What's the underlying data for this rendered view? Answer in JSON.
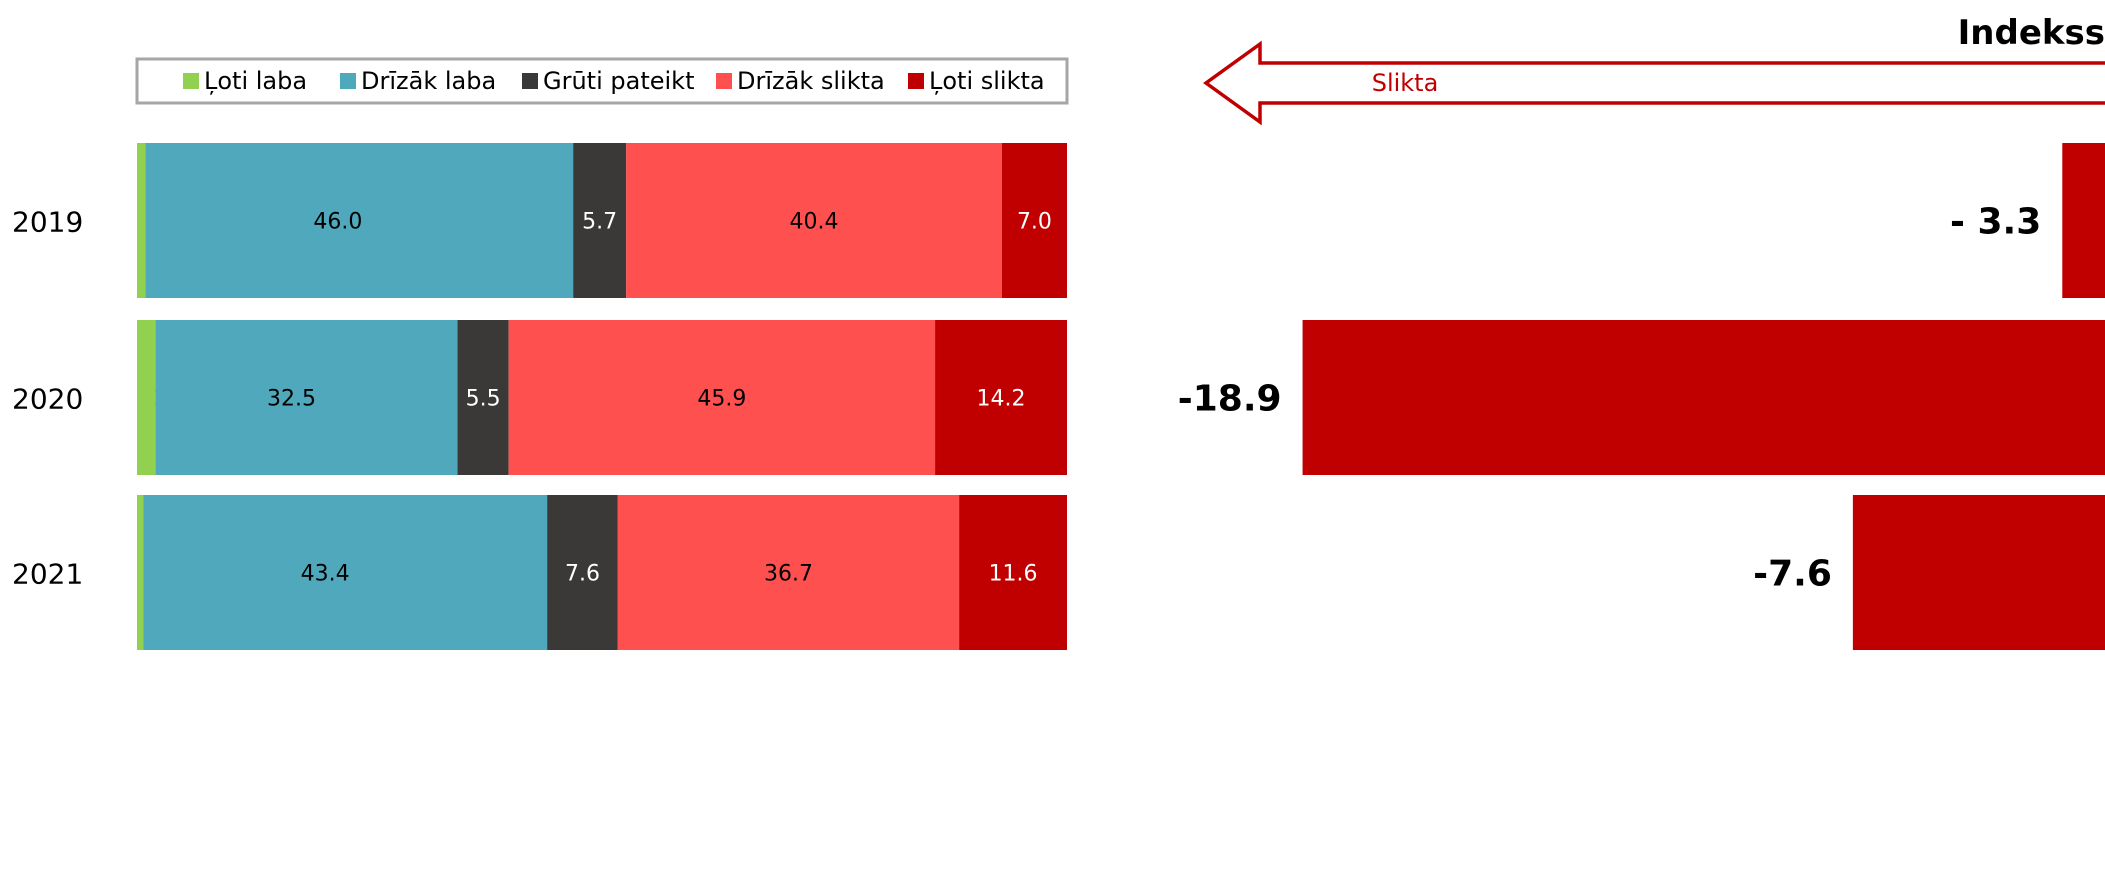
{
  "chart_data": [
    {
      "type": "bar",
      "orientation": "horizontal",
      "stacked": true,
      "categories": [
        "2019",
        "2020",
        "2021"
      ],
      "series": [
        {
          "name": "Ļoti laba",
          "color": "#92d050",
          "values": [
            0.9,
            2.0,
            0.7
          ],
          "show_labels": true
        },
        {
          "name": "Drīzāk laba",
          "color": "#4fa8bb",
          "values": [
            46.0,
            32.5,
            43.4
          ],
          "show_labels": true
        },
        {
          "name": "Grūti pateikt",
          "color": "#3a3938",
          "values": [
            5.7,
            5.5,
            7.6
          ],
          "show_labels": true
        },
        {
          "name": "Drīzāk slikta",
          "color": "#ff5050",
          "values": [
            40.4,
            45.9,
            36.7
          ],
          "show_labels": true
        },
        {
          "name": "Ļoti slikta",
          "color": "#c00000",
          "values": [
            7.0,
            14.2,
            11.6
          ],
          "show_labels": true
        }
      ],
      "legend": "top",
      "xlim": [
        0,
        100
      ],
      "grid": false
    },
    {
      "type": "bar",
      "orientation": "horizontal",
      "title": "Indekss",
      "categories": [
        "2019",
        "2020",
        "2021"
      ],
      "values": [
        -3.3,
        -18.9,
        -7.6
      ],
      "value_labels": [
        "- 3.3",
        "-18.9",
        "-7.6"
      ],
      "color": "#c00000",
      "direction_arrow": {
        "label": "Slikta",
        "direction": "left",
        "color": "#c00000"
      },
      "grid": false
    }
  ]
}
